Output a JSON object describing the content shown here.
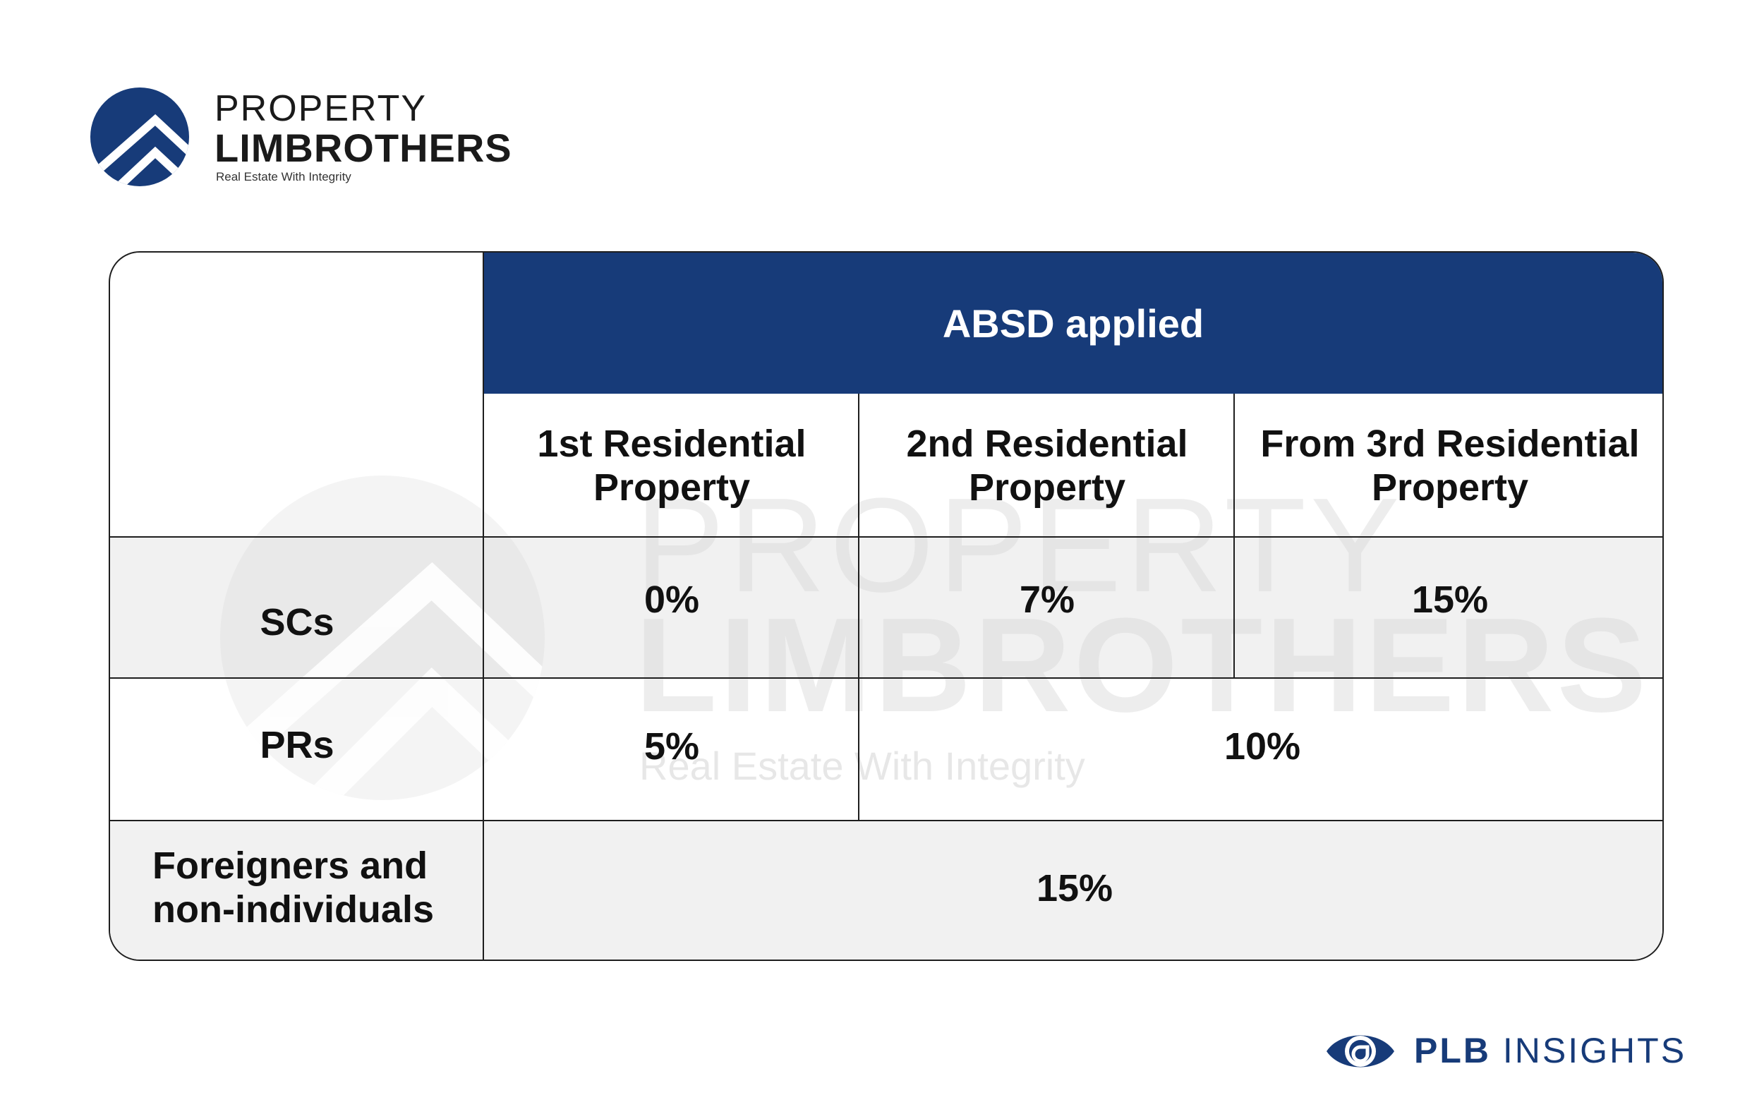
{
  "brand": {
    "line1": "PROPERTY",
    "line2": "LIMBROTHERS",
    "tagline": "Real Estate With Integrity",
    "color": "#173b79"
  },
  "table": {
    "group_header": "ABSD applied",
    "columns": [
      "1st Residential Property",
      "2nd Residential Property",
      "From 3rd Residential Property"
    ],
    "rows": [
      {
        "label": "SCs",
        "values": [
          "0%",
          "7%",
          "15%"
        ]
      },
      {
        "label": "PRs",
        "values": [
          "5%",
          "10%"
        ]
      },
      {
        "label": "Foreigners and non-individuals",
        "values": [
          "15%"
        ]
      }
    ]
  },
  "watermark": {
    "line1": "PROPERTY",
    "line2": "LIMBROTHERS",
    "line3": "Real Estate With Integrity"
  },
  "footer": {
    "prefix": "PLB",
    "suffix": "INSIGHTS",
    "icon": "eye-icon"
  }
}
